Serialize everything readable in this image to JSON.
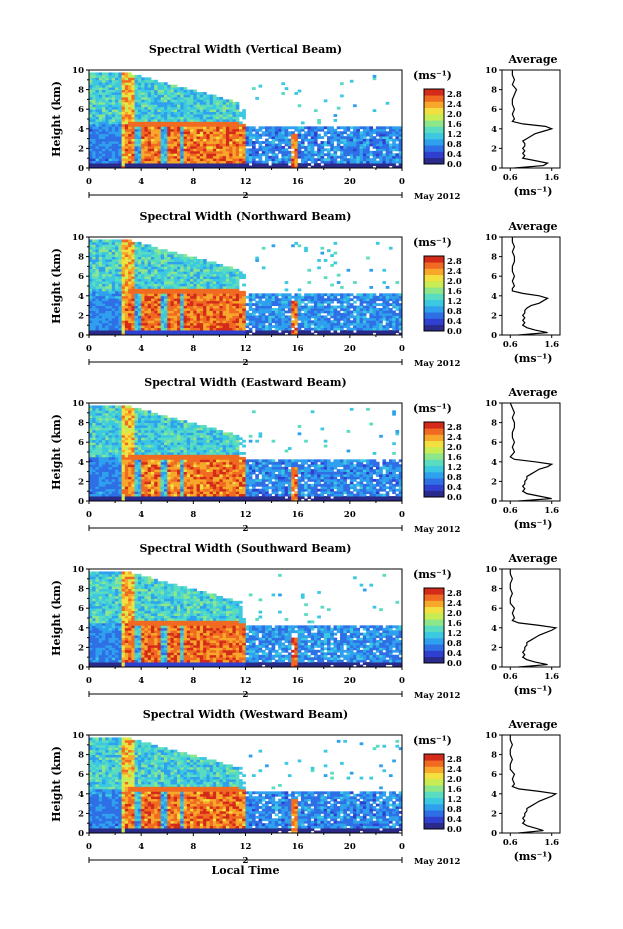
{
  "chart_data": [
    {
      "type": "heatmap",
      "title": "Spectral Width (Vertical Beam)",
      "xlabel": "",
      "ylabel": "Height (km)",
      "xlim": [
        0,
        24
      ],
      "ylim": [
        0,
        10
      ],
      "xticks": [
        "0",
        "4",
        "8",
        "12",
        "16",
        "20",
        "0"
      ],
      "yticks": [
        "0",
        "2",
        "4",
        "6",
        "8",
        "10"
      ],
      "date_marks": {
        "start": "",
        "mid": "2",
        "end": ""
      },
      "date_label": "May 2012",
      "colorbar": {
        "unit": "(ms⁻¹)",
        "ticks": [
          "0.0",
          "0.4",
          "0.8",
          "1.2",
          "1.6",
          "2.0",
          "2.4",
          "2.8"
        ],
        "range": [
          0,
          3.0
        ]
      },
      "profile": {
        "title": "Average",
        "xlabel": "(ms⁻¹)",
        "xticks": [
          "0.6",
          "1.6"
        ],
        "yticks": [
          "0",
          "2",
          "4",
          "6",
          "8",
          "10"
        ],
        "xlim": [
          0.4,
          1.8
        ],
        "heights": [
          0,
          0.25,
          0.5,
          0.75,
          1,
          1.25,
          1.5,
          1.75,
          2,
          2.25,
          2.5,
          2.75,
          3,
          3.25,
          3.5,
          3.75,
          4,
          4.25,
          4.5,
          4.75,
          5,
          5.5,
          6,
          6.5,
          7,
          7.5,
          8,
          8.5,
          9,
          9.5,
          10
        ],
        "values": [
          0.7,
          1.4,
          1.5,
          1.2,
          0.9,
          0.95,
          0.9,
          0.95,
          0.9,
          0.95,
          0.95,
          0.9,
          1.0,
          1.1,
          1.2,
          1.4,
          1.6,
          1.45,
          0.9,
          0.65,
          0.7,
          0.65,
          0.7,
          0.65,
          0.65,
          0.7,
          0.75,
          0.65,
          0.7,
          0.65,
          0.65
        ]
      }
    },
    {
      "type": "heatmap",
      "title": "Spectral Width (Northward Beam)",
      "xlabel": "",
      "ylabel": "Height (km)",
      "xlim": [
        0,
        24
      ],
      "ylim": [
        0,
        10
      ],
      "xticks": [
        "0",
        "4",
        "8",
        "12",
        "16",
        "20",
        "0"
      ],
      "yticks": [
        "0",
        "2",
        "4",
        "6",
        "8",
        "10"
      ],
      "date_marks": {
        "start": "",
        "mid": "2",
        "end": ""
      },
      "date_label": "May 2012",
      "colorbar": {
        "unit": "(ms⁻¹)",
        "ticks": [
          "0.0",
          "0.4",
          "0.8",
          "1.2",
          "1.6",
          "2.0",
          "2.4",
          "2.8"
        ],
        "range": [
          0,
          3.0
        ]
      },
      "profile": {
        "title": "Average",
        "xlabel": "(ms⁻¹)",
        "xticks": [
          "0.6",
          "1.6"
        ],
        "yticks": [
          "0",
          "2",
          "4",
          "6",
          "8",
          "10"
        ],
        "xlim": [
          0.4,
          1.8
        ],
        "heights": [
          0,
          0.25,
          0.5,
          0.75,
          1,
          1.25,
          1.5,
          1.75,
          2,
          2.25,
          2.5,
          2.75,
          3,
          3.25,
          3.5,
          3.75,
          4,
          4.25,
          4.5,
          4.75,
          5,
          5.5,
          6,
          6.5,
          7,
          7.5,
          8,
          8.5,
          9,
          9.5,
          10
        ],
        "values": [
          0.8,
          1.5,
          1.2,
          1.0,
          0.9,
          0.95,
          0.9,
          0.95,
          0.9,
          0.95,
          0.95,
          1.0,
          1.1,
          1.3,
          1.4,
          1.5,
          1.3,
          0.9,
          0.65,
          0.65,
          0.7,
          0.65,
          0.7,
          0.65,
          0.65,
          0.7,
          0.7,
          0.65,
          0.7,
          0.65,
          0.65
        ]
      }
    },
    {
      "type": "heatmap",
      "title": "Spectral Width (Eastward Beam)",
      "xlabel": "",
      "ylabel": "Height (km)",
      "xlim": [
        0,
        24
      ],
      "ylim": [
        0,
        10
      ],
      "xticks": [
        "0",
        "4",
        "8",
        "12",
        "16",
        "20",
        "0"
      ],
      "yticks": [
        "0",
        "2",
        "4",
        "6",
        "8",
        "10"
      ],
      "date_marks": {
        "start": "",
        "mid": "2",
        "end": ""
      },
      "date_label": "May 2012",
      "colorbar": {
        "unit": "(ms⁻¹)",
        "ticks": [
          "0.0",
          "0.4",
          "0.8",
          "1.2",
          "1.6",
          "2.0",
          "2.4",
          "2.8"
        ],
        "range": [
          0,
          3.0
        ]
      },
      "profile": {
        "title": "Average",
        "xlabel": "(ms⁻¹)",
        "xticks": [
          "0.6",
          "1.6"
        ],
        "yticks": [
          "0",
          "2",
          "4",
          "6",
          "8",
          "10"
        ],
        "xlim": [
          0.4,
          1.8
        ],
        "heights": [
          0,
          0.25,
          0.5,
          0.75,
          1,
          1.25,
          1.5,
          1.75,
          2,
          2.25,
          2.5,
          2.75,
          3,
          3.25,
          3.5,
          3.75,
          4,
          4.25,
          4.5,
          4.75,
          5,
          5.5,
          6,
          6.5,
          7,
          7.5,
          8,
          8.5,
          9,
          9.5,
          10
        ],
        "values": [
          0.8,
          1.6,
          1.3,
          1.0,
          0.9,
          0.95,
          0.9,
          0.95,
          0.95,
          1.0,
          1.0,
          1.1,
          1.2,
          1.3,
          1.5,
          1.6,
          1.2,
          0.7,
          0.6,
          0.65,
          0.7,
          0.65,
          0.7,
          0.65,
          0.65,
          0.7,
          0.7,
          0.65,
          0.7,
          0.65,
          0.6
        ]
      }
    },
    {
      "type": "heatmap",
      "title": "Spectral Width (Southward Beam)",
      "xlabel": "",
      "ylabel": "Height (km)",
      "xlim": [
        0,
        24
      ],
      "ylim": [
        0,
        10
      ],
      "xticks": [
        "0",
        "4",
        "8",
        "12",
        "16",
        "20",
        "0"
      ],
      "yticks": [
        "0",
        "2",
        "4",
        "6",
        "8",
        "10"
      ],
      "date_marks": {
        "start": "",
        "mid": "2",
        "end": ""
      },
      "date_label": "May 2012",
      "colorbar": {
        "unit": "(ms⁻¹)",
        "ticks": [
          "0.0",
          "0.4",
          "0.8",
          "1.2",
          "1.6",
          "2.0",
          "2.4",
          "2.8"
        ],
        "range": [
          0,
          3.0
        ]
      },
      "profile": {
        "title": "Average",
        "xlabel": "(ms⁻¹)",
        "xticks": [
          "0.6",
          "1.6"
        ],
        "yticks": [
          "0",
          "2",
          "4",
          "6",
          "8",
          "10"
        ],
        "xlim": [
          0.4,
          1.8
        ],
        "heights": [
          0,
          0.25,
          0.5,
          0.75,
          1,
          1.25,
          1.5,
          1.75,
          2,
          2.25,
          2.5,
          2.75,
          3,
          3.25,
          3.5,
          3.75,
          4,
          4.25,
          4.5,
          4.75,
          5,
          5.5,
          6,
          6.5,
          7,
          7.5,
          8,
          8.5,
          9,
          9.5,
          10
        ],
        "values": [
          0.8,
          1.5,
          1.2,
          1.0,
          0.9,
          0.95,
          0.9,
          0.95,
          0.95,
          1.0,
          1.0,
          1.1,
          1.2,
          1.3,
          1.45,
          1.6,
          1.7,
          1.3,
          0.8,
          0.65,
          0.7,
          0.65,
          0.7,
          0.6,
          0.6,
          0.65,
          0.6,
          0.6,
          0.65,
          0.6,
          0.6
        ]
      }
    },
    {
      "type": "heatmap",
      "title": "Spectral Width (Westward Beam)",
      "xlabel": "Local Time",
      "ylabel": "Height (km)",
      "xlim": [
        0,
        24
      ],
      "ylim": [
        0,
        10
      ],
      "xticks": [
        "0",
        "4",
        "8",
        "12",
        "16",
        "20",
        "0"
      ],
      "yticks": [
        "0",
        "2",
        "4",
        "6",
        "8",
        "10"
      ],
      "date_marks": {
        "start": "",
        "mid": "2",
        "end": ""
      },
      "date_label": "May 2012",
      "colorbar": {
        "unit": "(ms⁻¹)",
        "ticks": [
          "0.0",
          "0.4",
          "0.8",
          "1.2",
          "1.6",
          "2.0",
          "2.4",
          "2.8"
        ],
        "range": [
          0,
          3.0
        ]
      },
      "profile": {
        "title": "Average",
        "xlabel": "(ms⁻¹)",
        "xticks": [
          "0.6",
          "1.6"
        ],
        "yticks": [
          "0",
          "2",
          "4",
          "6",
          "8",
          "10"
        ],
        "xlim": [
          0.4,
          1.8
        ],
        "heights": [
          0,
          0.25,
          0.5,
          0.75,
          1,
          1.25,
          1.5,
          1.75,
          2,
          2.25,
          2.5,
          2.75,
          3,
          3.25,
          3.5,
          3.75,
          4,
          4.25,
          4.5,
          4.75,
          5,
          5.5,
          6,
          6.5,
          7,
          7.5,
          8,
          8.5,
          9,
          9.5,
          10
        ],
        "values": [
          0.8,
          1.4,
          1.2,
          1.0,
          0.9,
          0.95,
          0.9,
          0.95,
          0.95,
          1.0,
          1.0,
          1.1,
          1.2,
          1.3,
          1.45,
          1.6,
          1.7,
          1.3,
          0.8,
          0.65,
          0.7,
          0.65,
          0.7,
          0.6,
          0.6,
          0.65,
          0.6,
          0.6,
          0.65,
          0.6,
          0.6
        ]
      }
    }
  ],
  "colors": {
    "cmap": [
      "#2a2a8a",
      "#2f3fd0",
      "#2f6fe6",
      "#2fa0ee",
      "#3cc8e0",
      "#59dcc0",
      "#8ee68a",
      "#c8ec54",
      "#f2e040",
      "#f7a82a",
      "#f06a22",
      "#d42a1a"
    ],
    "axis": "#000000",
    "missing": "#ffffff"
  }
}
